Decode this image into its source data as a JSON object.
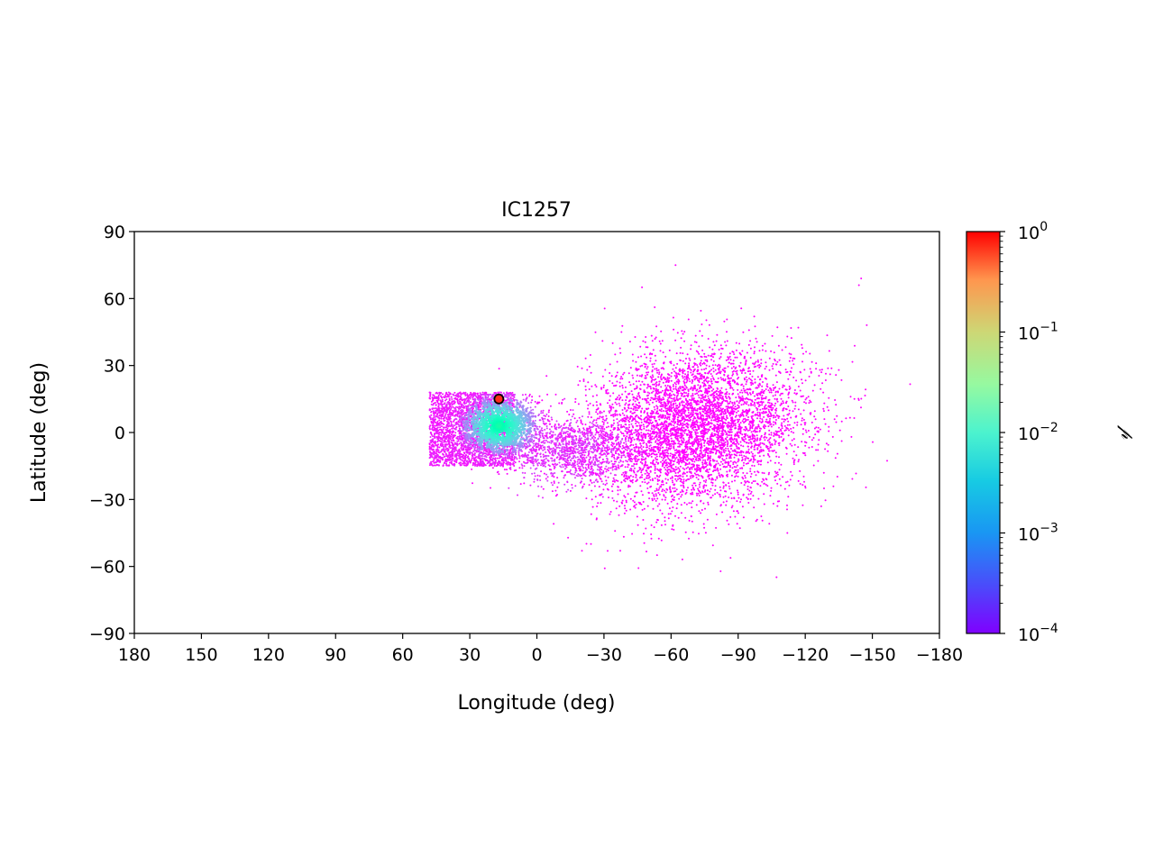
{
  "chart_data": {
    "type": "scatter",
    "title": "IC1257",
    "xlabel": "Longitude (deg)",
    "ylabel": "Latitude (deg)",
    "xlim": [
      180,
      -180
    ],
    "ylim": [
      -90,
      90
    ],
    "x_ticks": [
      180,
      150,
      120,
      90,
      60,
      30,
      0,
      -30,
      -60,
      -90,
      -120,
      -150,
      -180
    ],
    "x_tick_labels": [
      "180",
      "150",
      "120",
      "90",
      "60",
      "30",
      "0",
      "−30",
      "−60",
      "−90",
      "−120",
      "−150",
      "−180"
    ],
    "y_ticks": [
      90,
      60,
      30,
      0,
      -30,
      -60,
      -90
    ],
    "y_tick_labels": [
      "90",
      "60",
      "30",
      "0",
      "−30",
      "−60",
      "−90"
    ],
    "grid": false,
    "colorbar": {
      "label": "𝓅",
      "scale": "log",
      "range": [
        0.0001,
        1
      ],
      "ticks": [
        1,
        0.1,
        0.01,
        0.001,
        0.0001
      ],
      "tick_base": [
        "10",
        "10",
        "10",
        "10",
        "10"
      ],
      "tick_exp": [
        "0",
        "−1",
        "−2",
        "−3",
        "−4"
      ],
      "colormap": "rainbow"
    },
    "marker": {
      "x": 17,
      "y": 15,
      "color": "#ff2a1a",
      "edgecolor": "#000000"
    },
    "point_regions": [
      {
        "name": "dense-head",
        "center": [
          17,
          3
        ],
        "spread": [
          9,
          7
        ],
        "count": 1400
      },
      {
        "name": "wedge",
        "x_range": [
          48,
          10
        ],
        "y_range": [
          -15,
          18
        ],
        "count": 2600
      },
      {
        "name": "bridge",
        "center": [
          -15,
          -8
        ],
        "spread": [
          14,
          7
        ],
        "count": 1200
      },
      {
        "name": "diffuse-tail",
        "center": [
          -70,
          2
        ],
        "spread": [
          24,
          17
        ],
        "count": 5200
      }
    ],
    "outliers": [
      {
        "x": -62,
        "y": 75
      },
      {
        "x": -47,
        "y": 65
      },
      {
        "x": -145,
        "y": 69
      },
      {
        "x": -144,
        "y": 66
      },
      {
        "x": -112,
        "y": 43
      },
      {
        "x": -112,
        "y": -45
      },
      {
        "x": -135,
        "y": 28
      },
      {
        "x": -142,
        "y": 15
      }
    ]
  }
}
